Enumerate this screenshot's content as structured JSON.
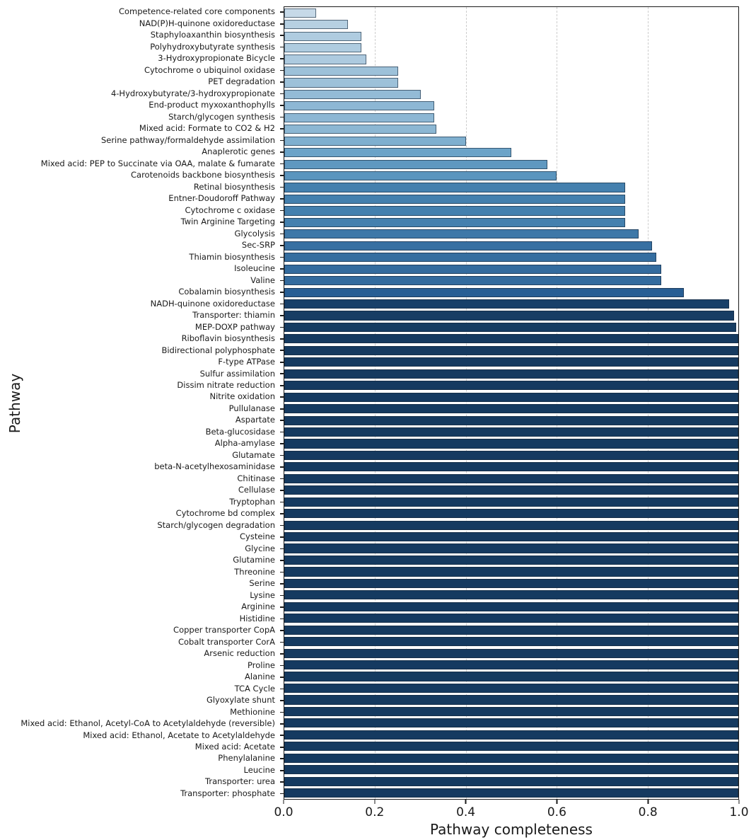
{
  "chart_data": {
    "type": "bar",
    "orientation": "horizontal",
    "title": "",
    "xlabel": "Pathway completeness",
    "ylabel": "Pathway",
    "xlim": [
      0.0,
      1.0
    ],
    "xticks": [
      0.0,
      0.2,
      0.4,
      0.6,
      0.8,
      1.0
    ],
    "xtick_labels": [
      "0.0",
      "0.2",
      "0.4",
      "0.6",
      "0.8",
      "1.0"
    ],
    "grid": {
      "axis": "x",
      "style": "dashed",
      "color": "#cdcdcd",
      "at": [
        0.2,
        0.4,
        0.6,
        0.8
      ]
    },
    "legend": "none",
    "colormap": {
      "name": "Blues (bar color mapped to completeness value)",
      "stops": [
        [
          0.0,
          "#d8e6f1"
        ],
        [
          0.07,
          "#c6d9e8"
        ],
        [
          0.25,
          "#9dc1d9"
        ],
        [
          0.5,
          "#6ba3c8"
        ],
        [
          0.75,
          "#4480ae"
        ],
        [
          0.88,
          "#285e94"
        ],
        [
          1.0,
          "#153a60"
        ]
      ]
    },
    "categories": [
      "Competence-related core components",
      "NAD(P)H-quinone oxidoreductase",
      "Staphyloaxanthin biosynthesis",
      "Polyhydroxybutyrate synthesis",
      "3-Hydroxypropionate Bicycle",
      "Cytochrome o ubiquinol oxidase",
      "PET degradation",
      "4-Hydroxybutyrate/3-hydroxypropionate",
      "End-product myxoxanthophylls",
      "Starch/glycogen synthesis",
      "Mixed acid: Formate to CO2 & H2",
      "Serine pathway/formaldehyde assimilation",
      "Anaplerotic genes",
      "Mixed acid: PEP to Succinate via OAA, malate & fumarate",
      "Carotenoids backbone biosynthesis",
      "Retinal biosynthesis",
      "Entner-Doudoroff Pathway",
      "Cytochrome c oxidase",
      "Twin Arginine Targeting",
      "Glycolysis",
      "Sec-SRP",
      "Thiamin biosynthesis",
      "Isoleucine",
      "Valine",
      "Cobalamin biosynthesis",
      "NADH-quinone oxidoreductase",
      "Transporter: thiamin",
      "MEP-DOXP pathway",
      "Riboflavin biosynthesis",
      "Bidirectional polyphosphate",
      "F-type ATPase",
      "Sulfur assimilation",
      "Dissim nitrate reduction",
      "Nitrite oxidation",
      "Pullulanase",
      "Aspartate",
      "Beta-glucosidase",
      "Alpha-amylase",
      "Glutamate",
      "beta-N-acetylhexosaminidase",
      "Chitinase",
      "Cellulase",
      "Tryptophan",
      "Cytochrome bd complex",
      "Starch/glycogen degradation",
      "Cysteine",
      "Glycine",
      "Glutamine",
      "Threonine",
      "Serine",
      "Lysine",
      "Arginine",
      "Histidine",
      "Copper transporter CopA",
      "Cobalt transporter CorA",
      "Arsenic reduction",
      "Proline",
      "Alanine",
      "TCA Cycle",
      "Glyoxylate shunt",
      "Methionine",
      "Mixed acid: Ethanol, Acetyl-CoA to Acetylaldehyde (reversible)",
      "Mixed acid: Ethanol, Acetate to Acetylaldehyde",
      "Mixed acid: Acetate",
      "Phenylalanine",
      "Leucine",
      "Transporter: urea",
      "Transporter: phosphate"
    ],
    "values": [
      0.07,
      0.14,
      0.17,
      0.17,
      0.18,
      0.25,
      0.25,
      0.3,
      0.33,
      0.33,
      0.335,
      0.4,
      0.5,
      0.58,
      0.6,
      0.75,
      0.75,
      0.75,
      0.75,
      0.78,
      0.81,
      0.82,
      0.83,
      0.83,
      0.88,
      0.98,
      0.99,
      0.995,
      1.0,
      1.0,
      1.0,
      1.0,
      1.0,
      1.0,
      1.0,
      1.0,
      1.0,
      1.0,
      1.0,
      1.0,
      1.0,
      1.0,
      1.0,
      1.0,
      1.0,
      1.0,
      1.0,
      1.0,
      1.0,
      1.0,
      1.0,
      1.0,
      1.0,
      1.0,
      1.0,
      1.0,
      1.0,
      1.0,
      1.0,
      1.0,
      1.0,
      1.0,
      1.0,
      1.0,
      1.0,
      1.0,
      1.0,
      1.0
    ]
  }
}
